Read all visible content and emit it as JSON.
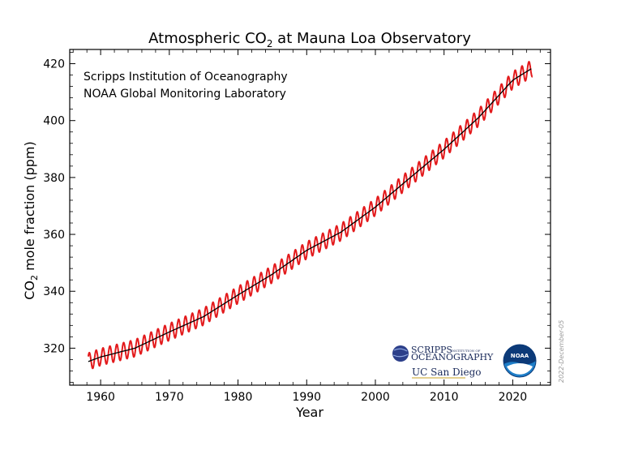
{
  "colors": {
    "monthly": "#e31a1c",
    "trend": "#000000",
    "scripps_navy": "#1a2a5a",
    "noaa_blue": "#1e7ec8"
  },
  "logos": {
    "scripps_line1": "SCRIPPS",
    "scripps_small": "INSTITUTION OF",
    "scripps_line2": "OCEANOGRAPHY",
    "ucsd": "UC San Diego",
    "noaa": "NOAA"
  },
  "chart_data": {
    "type": "line",
    "title_pre": "Atmospheric CO",
    "title_sub": "2",
    "title_post": " at Mauna Loa Observatory",
    "xlabel": "Year",
    "ylabel_pre": "CO",
    "ylabel_sub": "2",
    "ylabel_post": " mole fraction (ppm)",
    "xlim": [
      1955.5,
      2025.5
    ],
    "ylim": [
      307,
      425
    ],
    "xticks": [
      1960,
      1970,
      1980,
      1990,
      2000,
      2010,
      2020
    ],
    "xtick_labels": [
      "1960",
      "1970",
      "1980",
      "1990",
      "2000",
      "2010",
      "2020"
    ],
    "yticks": [
      320,
      340,
      360,
      380,
      400,
      420
    ],
    "ytick_labels": [
      "320",
      "340",
      "360",
      "380",
      "400",
      "420"
    ],
    "annotations": [
      "Scripps Institution of Oceanography",
      "NOAA Global Monitoring Laboratory"
    ],
    "date_stamp": "2022-December-05",
    "grid": false,
    "series": [
      {
        "style": "monthly",
        "x_start": 1958.2,
        "x_end": 2022.9,
        "seasonal_amplitude_ppm": 3.0,
        "x": [
          1958.2,
          1960,
          1965,
          1970,
          1975,
          1980,
          1985,
          1990,
          1995,
          2000,
          2005,
          2010,
          2015,
          2020,
          2022.9
        ],
        "y": [
          315.3,
          316.9,
          320.0,
          325.7,
          331.1,
          338.7,
          346.0,
          354.4,
          360.8,
          369.6,
          379.8,
          389.9,
          401.0,
          414.2,
          418.5
        ]
      },
      {
        "style": "trend",
        "x": [
          1958.2,
          1960,
          1965,
          1970,
          1975,
          1980,
          1985,
          1990,
          1995,
          2000,
          2005,
          2010,
          2015,
          2020,
          2022.9
        ],
        "y": [
          315.3,
          316.9,
          320.0,
          325.7,
          331.1,
          338.7,
          346.0,
          354.4,
          360.8,
          369.6,
          379.8,
          389.9,
          401.0,
          414.2,
          418.5
        ]
      }
    ]
  }
}
